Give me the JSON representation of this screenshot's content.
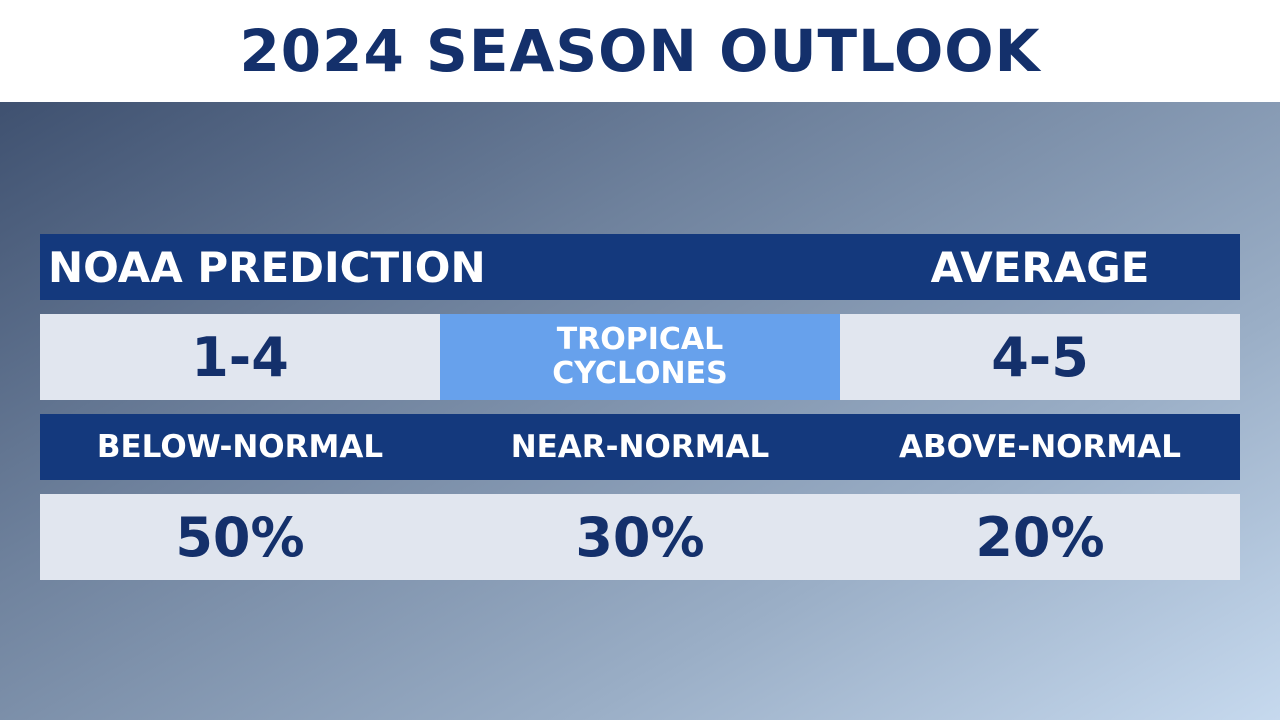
{
  "title": "2024 SEASON OUTLOOK",
  "header_row": {
    "prediction_label": "NOAA PREDICTION",
    "average_label": "AVERAGE"
  },
  "cyclones": {
    "prediction_value": "1-4",
    "label_line1": "TROPICAL",
    "label_line2": "CYCLONES",
    "average_value": "4-5"
  },
  "categories": {
    "below": "BELOW-NORMAL",
    "near": "NEAR-NORMAL",
    "above": "ABOVE-NORMAL"
  },
  "probabilities": {
    "below": "50%",
    "near": "30%",
    "above": "20%"
  },
  "colors": {
    "title_text": "#14306b",
    "header_bar": "#14397d",
    "light_cell": "#e1e6ef",
    "accent_cell": "#67a1ec"
  }
}
